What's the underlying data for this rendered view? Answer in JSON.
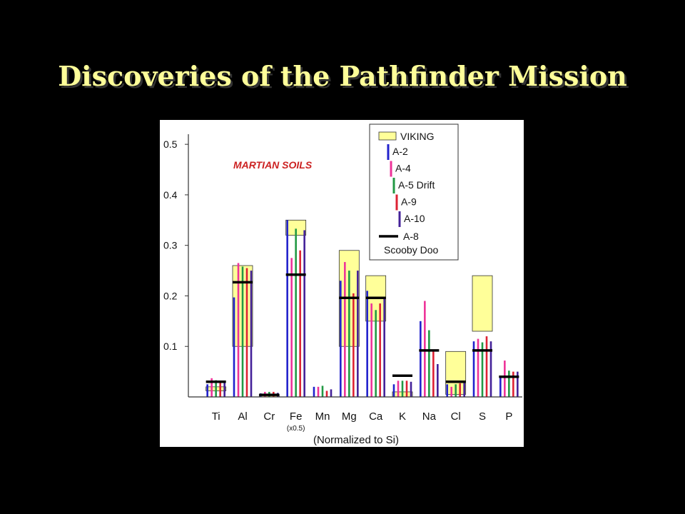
{
  "slide": {
    "title": "Discoveries of the Pathfinder Mission"
  },
  "colors": {
    "background": "#000000",
    "title": "#ffff99",
    "viking_fill": "#ffff99",
    "annotation": "#cc2222",
    "series": {
      "A-2": "#2222cc",
      "A-4": "#ee3399",
      "A-5 Drift": "#229944",
      "A-9": "#dd2233",
      "A-10": "#442299",
      "A-8 Scooby Doo": "#000000"
    }
  },
  "chart_data": {
    "type": "bar",
    "annotation": "MARTIAN SOILS",
    "xlabel": "(Normalized to Si)",
    "categories": [
      "Ti",
      "Al",
      "Cr",
      "Fe",
      "Mn",
      "Mg",
      "Ca",
      "K",
      "Na",
      "Cl",
      "S",
      "P"
    ],
    "category_notes": {
      "Fe": "(x0.5)"
    },
    "ylim": [
      0,
      0.52
    ],
    "yticks": [
      0.1,
      0.2,
      0.3,
      0.4,
      0.5
    ],
    "ytick_labels": [
      "0.1",
      "0.2",
      "0.3",
      "0.4",
      "0.5"
    ],
    "legend_position": "top-right",
    "viking_label": "VIKING",
    "viking_ranges": [
      [
        0.012,
        0.02
      ],
      [
        0.1,
        0.26
      ],
      [
        0,
        0.005
      ],
      [
        0.32,
        0.35
      ],
      null,
      [
        0.1,
        0.29
      ],
      [
        0.15,
        0.24
      ],
      [
        0,
        0.01
      ],
      null,
      [
        0.005,
        0.09
      ],
      [
        0.13,
        0.24
      ],
      null
    ],
    "series": [
      {
        "name": "A-2",
        "values": [
          0.025,
          0.197,
          0.007,
          0.35,
          0.02,
          0.23,
          0.21,
          0.025,
          0.15,
          0.025,
          0.11,
          0.04
        ]
      },
      {
        "name": "A-4",
        "values": [
          0.037,
          0.265,
          0.01,
          0.275,
          0.02,
          0.267,
          0.185,
          0.032,
          0.19,
          0.02,
          0.115,
          0.072
        ]
      },
      {
        "name": "A-5 Drift",
        "values": [
          0.033,
          0.258,
          0.01,
          0.333,
          0.022,
          0.25,
          0.172,
          0.032,
          0.132,
          0.025,
          0.108,
          0.052
        ]
      },
      {
        "name": "A-9",
        "values": [
          0.03,
          0.255,
          0.01,
          0.29,
          0.012,
          0.205,
          0.185,
          0.032,
          0.09,
          0.027,
          0.12,
          0.05
        ]
      },
      {
        "name": "A-10",
        "values": [
          0.028,
          0.25,
          0.008,
          0.33,
          0.015,
          0.25,
          0.195,
          0.03,
          0.065,
          0.03,
          0.11,
          0.05
        ]
      }
    ],
    "markers": {
      "name": "A-8",
      "label": "A-8",
      "sublabel": "Scooby Doo",
      "values": [
        0.03,
        0.227,
        0.004,
        0.242,
        null,
        0.196,
        0.196,
        0.042,
        0.092,
        0.03,
        0.092,
        0.04
      ]
    }
  }
}
